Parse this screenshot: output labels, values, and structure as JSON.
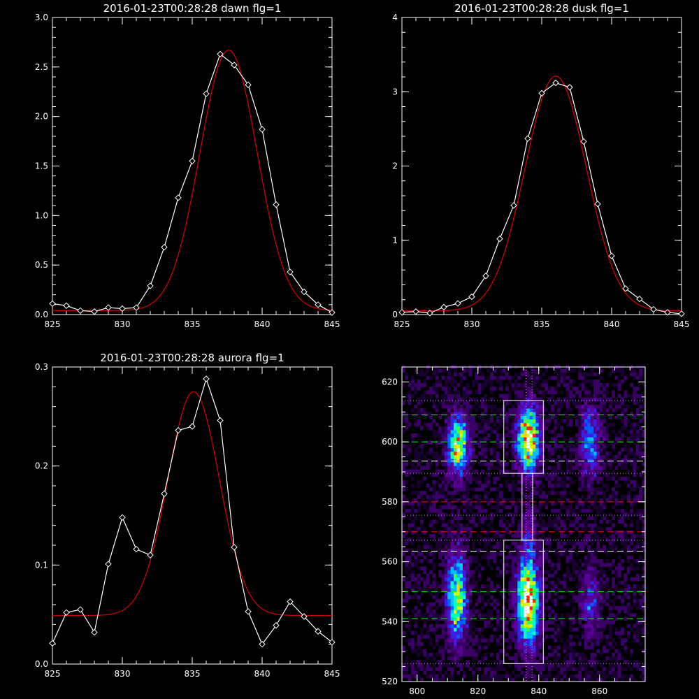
{
  "chart_data": [
    {
      "id": "dawn",
      "type": "line",
      "title": "2016-01-23T00:28:28 dawn flg=1",
      "xlim": [
        825,
        845
      ],
      "ylim": [
        0,
        3
      ],
      "xticks": [
        825,
        830,
        835,
        840,
        845
      ],
      "xticklabels": [
        "825",
        "830",
        "835",
        "840",
        "845"
      ],
      "yticks": [
        0,
        0.5,
        1,
        1.5,
        2,
        2.5,
        3
      ],
      "yticklabels": [
        "0.0",
        "0.5",
        "1.0",
        "1.5",
        "2.0",
        "2.5",
        "3.0"
      ],
      "series": [
        {
          "role": "data",
          "color": "#ffffff",
          "marker": "diamond",
          "x": [
            825,
            826,
            827,
            828,
            829,
            830,
            831,
            832,
            833,
            834,
            835,
            836,
            837,
            838,
            839,
            840,
            841,
            842,
            843,
            844,
            845
          ],
          "y": [
            0.11,
            0.09,
            0.04,
            0.03,
            0.07,
            0.06,
            0.07,
            0.29,
            0.68,
            1.18,
            1.55,
            2.23,
            2.63,
            2.52,
            2.32,
            1.87,
            1.11,
            0.43,
            0.23,
            0.1,
            0.02
          ]
        },
        {
          "role": "fit",
          "color": "#cc0000",
          "fit": {
            "amplitude": 2.63,
            "center": 837.6,
            "sigma": 2.05,
            "offset": 0.04
          }
        }
      ]
    },
    {
      "id": "dusk",
      "type": "line",
      "title": "2016-01-23T00:28:28 dusk flg=1",
      "xlim": [
        825,
        845
      ],
      "ylim": [
        0,
        4
      ],
      "xticks": [
        825,
        830,
        835,
        840,
        845
      ],
      "xticklabels": [
        "825",
        "830",
        "835",
        "840",
        "845"
      ],
      "yticks": [
        0,
        1,
        2,
        3,
        4
      ],
      "yticklabels": [
        "0",
        "1",
        "2",
        "3",
        "4"
      ],
      "series": [
        {
          "role": "data",
          "color": "#ffffff",
          "marker": "diamond",
          "x": [
            825,
            826,
            827,
            828,
            829,
            830,
            831,
            832,
            833,
            834,
            835,
            836,
            837,
            838,
            839,
            840,
            841,
            842,
            843,
            844,
            845
          ],
          "y": [
            0.03,
            0.04,
            0.02,
            0.1,
            0.15,
            0.24,
            0.52,
            1.02,
            1.47,
            2.37,
            2.98,
            3.12,
            3.06,
            2.33,
            1.49,
            0.79,
            0.35,
            0.21,
            0.07,
            0.03,
            0.01
          ]
        },
        {
          "role": "fit",
          "color": "#cc0000",
          "fit": {
            "amplitude": 3.16,
            "center": 836.0,
            "sigma": 2.2,
            "offset": 0.05
          }
        }
      ]
    },
    {
      "id": "aurora",
      "type": "line",
      "title": "2016-01-23T00:28:28 aurora flg=1",
      "xlim": [
        825,
        845
      ],
      "ylim": [
        0,
        0.3
      ],
      "xticks": [
        825,
        830,
        835,
        840,
        845
      ],
      "xticklabels": [
        "825",
        "830",
        "835",
        "840",
        "845"
      ],
      "yticks": [
        0,
        0.1,
        0.2,
        0.3
      ],
      "yticklabels": [
        "0.0",
        "0.1",
        "0.2",
        "0.3"
      ],
      "series": [
        {
          "role": "data",
          "color": "#ffffff",
          "marker": "diamond",
          "x": [
            825,
            826,
            827,
            828,
            829,
            830,
            831,
            832,
            833,
            834,
            835,
            836,
            837,
            838,
            839,
            840,
            841,
            842,
            843,
            844,
            845
          ],
          "y": [
            0.021,
            0.052,
            0.055,
            0.032,
            0.101,
            0.148,
            0.116,
            0.11,
            0.172,
            0.236,
            0.24,
            0.288,
            0.246,
            0.118,
            0.053,
            0.02,
            0.039,
            0.063,
            0.048,
            0.033,
            0.022
          ]
        },
        {
          "role": "fit",
          "color": "#cc0000",
          "fit": {
            "amplitude": 0.226,
            "center": 835.1,
            "sigma": 1.85,
            "offset": 0.049
          }
        }
      ]
    },
    {
      "id": "image",
      "type": "heatmap",
      "title": "",
      "xlim": [
        795,
        875
      ],
      "ylim": [
        520,
        625
      ],
      "xticks": [
        800,
        820,
        840,
        860
      ],
      "xticklabels": [
        "800",
        "820",
        "840",
        "860"
      ],
      "yticks": [
        520,
        540,
        560,
        580,
        600,
        620
      ],
      "yticklabels": [
        "520",
        "540",
        "560",
        "580",
        "600",
        "620"
      ],
      "colormap": [
        "#000000",
        "#1a0030",
        "#3a0068",
        "#5a0096",
        "#3c1ee0",
        "#0060ff",
        "#00c0ff",
        "#00ffc0",
        "#40ff40",
        "#d0ff00",
        "#ffd000",
        "#ff2000",
        "#ffffff"
      ],
      "blobs": [
        {
          "x": 813.5,
          "y": 599,
          "sx": 2.2,
          "sy": 6.5,
          "amp": 0.82
        },
        {
          "x": 813.0,
          "y": 548,
          "sx": 2.2,
          "sy": 10.0,
          "amp": 0.72
        },
        {
          "x": 836.5,
          "y": 601,
          "sx": 2.4,
          "sy": 7.0,
          "amp": 1.0
        },
        {
          "x": 836.5,
          "y": 547,
          "sx": 2.4,
          "sy": 9.5,
          "amp": 1.0
        },
        {
          "x": 836.5,
          "y": 570,
          "sx": 1.6,
          "sy": 7.0,
          "amp": 0.18
        },
        {
          "x": 857.0,
          "y": 600,
          "sx": 2.2,
          "sy": 8.0,
          "amp": 0.42
        },
        {
          "x": 857.0,
          "y": 547,
          "sx": 2.2,
          "sy": 8.0,
          "amp": 0.28
        }
      ],
      "boxes": [
        {
          "x0": 828.5,
          "x1": 841.5,
          "y0": 589.5,
          "y1": 613.8
        },
        {
          "x0": 828.5,
          "x1": 841.5,
          "y0": 526.0,
          "y1": 567.2
        },
        {
          "x0": 834.5,
          "x1": 838.0,
          "y0": 567.2,
          "y1": 589.5
        }
      ],
      "hlines": [
        {
          "y": 613.8,
          "color": "#ff66ff",
          "style": "dotted"
        },
        {
          "y": 609.0,
          "color": "#00ff00",
          "style": "dashed"
        },
        {
          "y": 600.0,
          "color": "#00ff00",
          "style": "dashed"
        },
        {
          "y": 593.6,
          "color": "#ffffff",
          "style": "dashed"
        },
        {
          "y": 589.5,
          "color": "#ff66ff",
          "style": "dotted"
        },
        {
          "y": 580.0,
          "color": "#ff0000",
          "style": "dashed"
        },
        {
          "y": 575.5,
          "color": "#ff66ff",
          "style": "dotted"
        },
        {
          "y": 570.0,
          "color": "#ff0000",
          "style": "dashed"
        },
        {
          "y": 567.2,
          "color": "#ff66ff",
          "style": "dotted"
        },
        {
          "y": 563.5,
          "color": "#ffffff",
          "style": "dashed"
        },
        {
          "y": 550.0,
          "color": "#00ff00",
          "style": "dashed"
        },
        {
          "y": 541.0,
          "color": "#00ff00",
          "style": "dashed"
        },
        {
          "y": 526.0,
          "color": "#ff66ff",
          "style": "dotted"
        }
      ],
      "vlines": [
        {
          "x": 835.8,
          "color": "#ff66ff",
          "style": "dotted"
        },
        {
          "x": 837.8,
          "color": "#ff66ff",
          "style": "dotted"
        }
      ]
    }
  ]
}
